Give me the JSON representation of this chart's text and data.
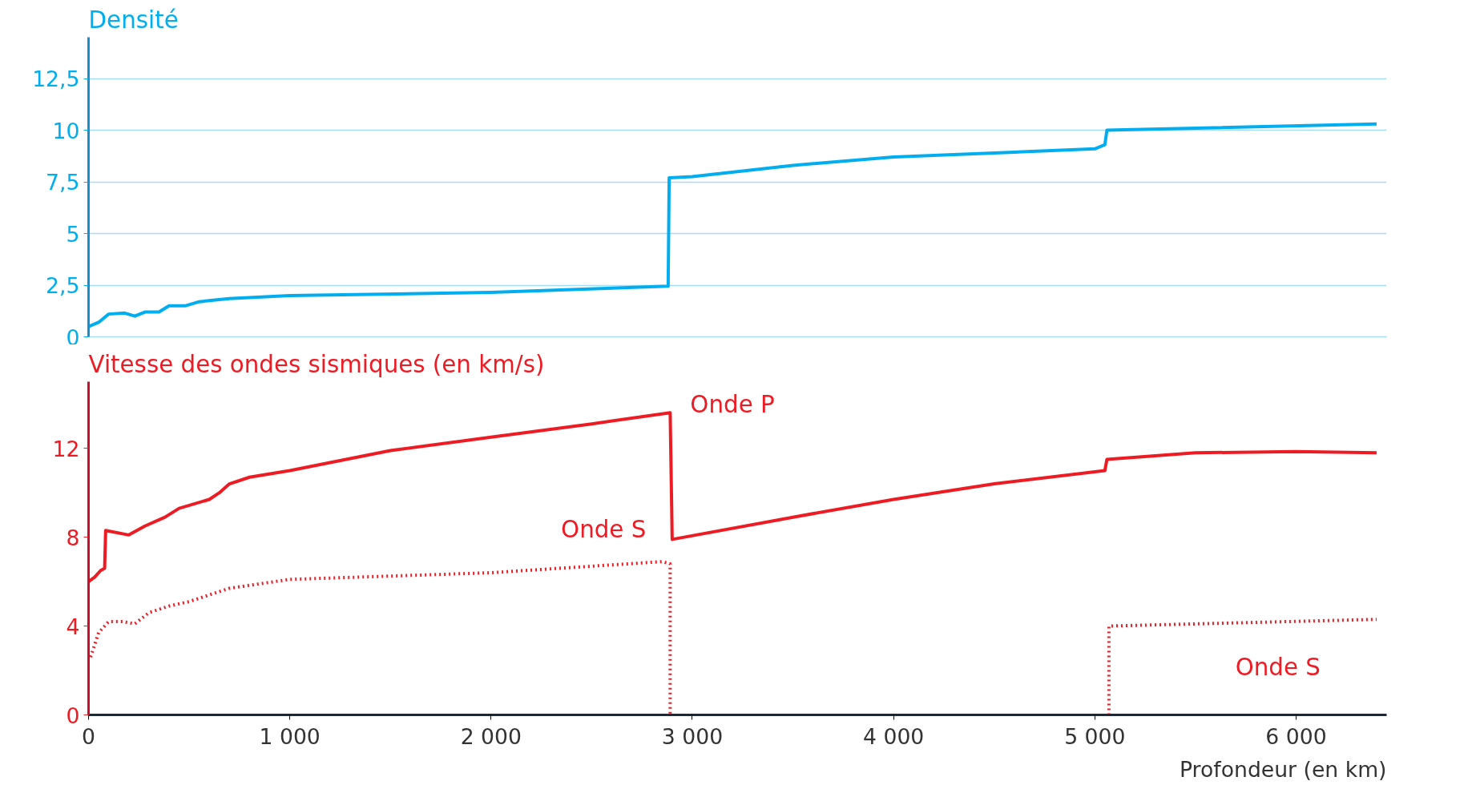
{
  "chart_data": [
    {
      "type": "line",
      "ylabel": "Densité",
      "xlim": [
        0,
        6450
      ],
      "ylim": [
        0,
        14.5
      ],
      "tick_labels": "y",
      "grid": "y",
      "yticks": [
        0,
        {
          "value": 2.5,
          "label": "2,5"
        },
        5,
        {
          "value": 7.5,
          "label": "7,5"
        },
        10,
        {
          "value": 12.5,
          "label": "12,5"
        }
      ],
      "series": [
        {
          "color": "#00aeef",
          "x": [
            0,
            50,
            100,
            180,
            230,
            280,
            350,
            400,
            480,
            550,
            700,
            1000,
            2000,
            2880,
            2885,
            3000,
            3500,
            4000,
            4500,
            5000,
            5050,
            5060,
            6400
          ],
          "values": [
            0.5,
            0.7,
            1.1,
            1.15,
            1.0,
            1.2,
            1.2,
            1.5,
            1.5,
            1.7,
            1.85,
            2.0,
            2.15,
            2.45,
            7.7,
            7.75,
            8.3,
            8.7,
            8.9,
            9.1,
            9.3,
            10.0,
            10.3
          ]
        }
      ]
    },
    {
      "type": "line",
      "ylabel": "Vitesse des ondes sismiques (en km/s)",
      "xlabel": "Profondeur (en km)",
      "xlim": [
        0,
        6450
      ],
      "ylim": [
        0,
        15
      ],
      "yticks": [
        0,
        4,
        8,
        12
      ],
      "xticks": [
        0,
        {
          "value": 1000,
          "label": "1 000"
        },
        {
          "value": 2000,
          "label": "2 000"
        },
        {
          "value": 3000,
          "label": "3 000"
        },
        {
          "value": 4000,
          "label": "4 000"
        },
        {
          "value": 5000,
          "label": "5 000"
        },
        {
          "value": 6000,
          "label": "6 000"
        }
      ],
      "series": [
        {
          "name": "Onde P",
          "color": "#ed1c24",
          "line_style": "solid",
          "x": [
            0,
            30,
            60,
            80,
            85,
            200,
            280,
            380,
            450,
            600,
            650,
            700,
            800,
            1000,
            1500,
            2000,
            2500,
            2890,
            2900,
            3500,
            4000,
            4500,
            5050,
            5060,
            5500,
            6000,
            6400
          ],
          "values": [
            6.0,
            6.2,
            6.5,
            6.6,
            8.3,
            8.1,
            8.5,
            8.9,
            9.3,
            9.7,
            10.0,
            10.4,
            10.7,
            11.0,
            11.9,
            12.5,
            13.1,
            13.6,
            7.9,
            8.9,
            9.7,
            10.4,
            11.0,
            11.5,
            11.8,
            11.85,
            11.8
          ]
        },
        {
          "name": "Onde S",
          "color": "#ed1c24",
          "line_style": "dotted",
          "x": [
            10,
            50,
            100,
            170,
            230,
            300,
            400,
            500,
            600,
            700,
            1000,
            2000,
            2850,
            2890,
            2890
          ],
          "values": [
            2.6,
            3.7,
            4.2,
            4.2,
            4.1,
            4.6,
            4.9,
            5.1,
            5.4,
            5.7,
            6.1,
            6.4,
            6.9,
            6.8,
            0
          ]
        },
        {
          "name": "Onde S",
          "color": "#ed1c24",
          "line_style": "dotted",
          "x": [
            5070,
            5070,
            6400
          ],
          "values": [
            0,
            4.0,
            4.3
          ]
        }
      ]
    }
  ]
}
